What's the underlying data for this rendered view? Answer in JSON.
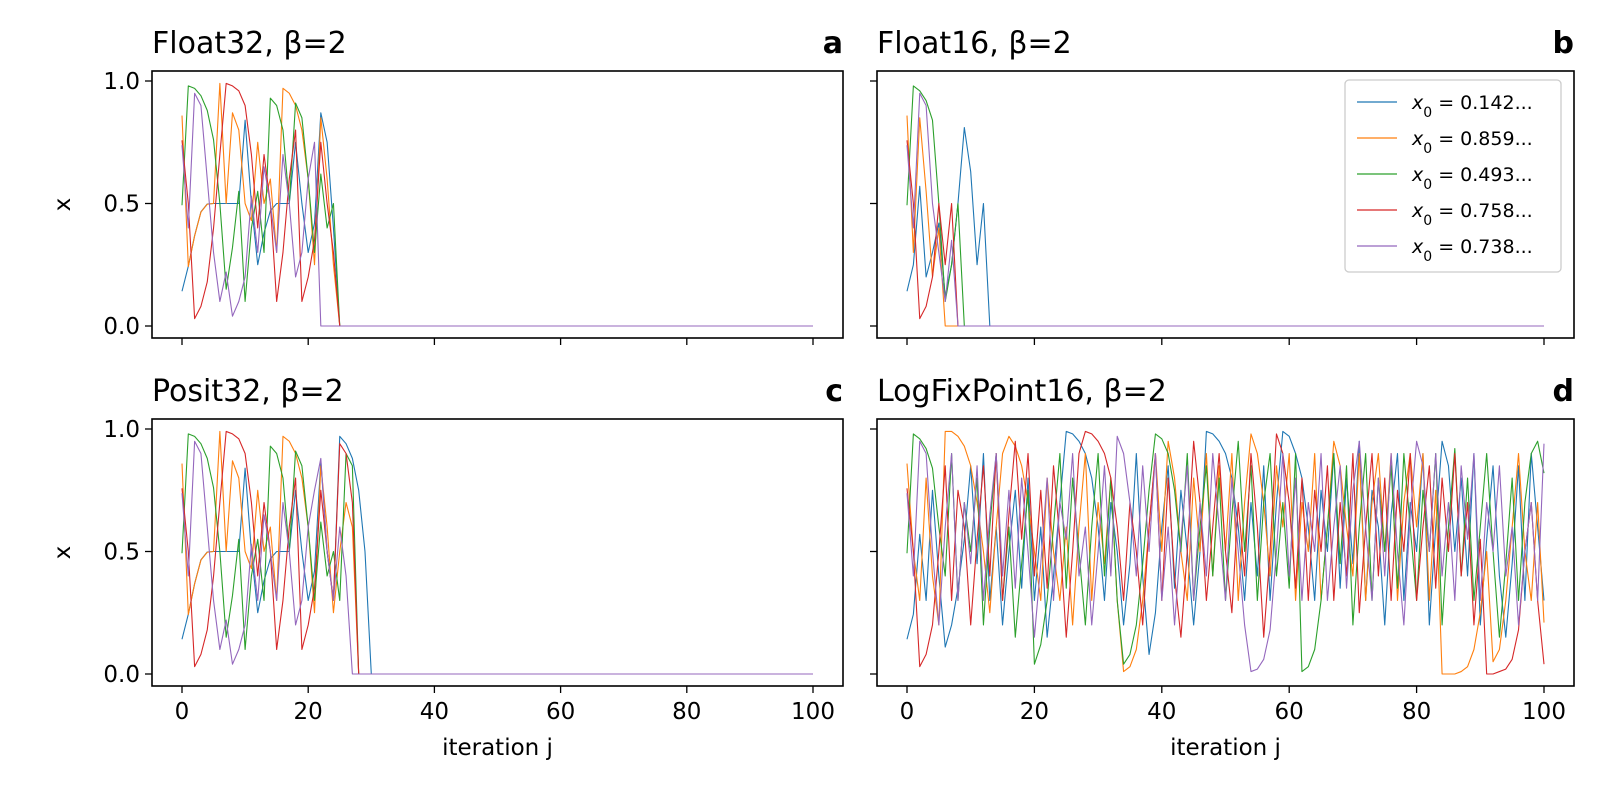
{
  "chart_data": [
    {
      "panel": "a",
      "type": "line",
      "title": "Float32, β=2",
      "letter": "a",
      "xlabel": "",
      "ylabel": "x",
      "xlim": [
        0,
        100
      ],
      "ylim": [
        0,
        1.0
      ],
      "xticks": [
        0,
        20,
        40,
        60,
        80,
        100
      ],
      "show_xtick_labels": false,
      "yticks": [
        0.0,
        0.5,
        1.0
      ],
      "ytick_labels": [
        "0.0",
        "0.5",
        "1.0"
      ],
      "show_ytick_labels": true,
      "series": [
        {
          "color": "#1f77b4",
          "values": [
            0.142,
            0.244,
            0.369,
            0.466,
            0.498,
            0.5,
            0.5,
            0.5,
            0.5,
            0.5,
            0.84,
            0.5,
            0.25,
            0.38,
            0.47,
            0.5,
            0.5,
            0.5,
            0.75,
            0.5,
            0.3,
            0.42,
            0.87,
            0.75,
            0.4,
            0.0
          ]
        },
        {
          "color": "#ff7f0e",
          "values": [
            0.859,
            0.243,
            0.368,
            0.465,
            0.497,
            0.5,
            0.99,
            0.5,
            0.87,
            0.8,
            0.5,
            0.43,
            0.75,
            0.5,
            0.6,
            0.3,
            0.97,
            0.95,
            0.9,
            0.8,
            0.6,
            0.25,
            0.85,
            0.6,
            0.25,
            0.0
          ]
        },
        {
          "color": "#2ca02c",
          "values": [
            0.493,
            0.98,
            0.97,
            0.94,
            0.88,
            0.76,
            0.5,
            0.15,
            0.32,
            0.55,
            0.1,
            0.4,
            0.55,
            0.3,
            0.93,
            0.9,
            0.8,
            0.5,
            0.91,
            0.85,
            0.6,
            0.3,
            0.62,
            0.4,
            0.5,
            0.0
          ]
        },
        {
          "color": "#d62728",
          "values": [
            0.758,
            0.5,
            0.03,
            0.08,
            0.18,
            0.4,
            0.7,
            0.99,
            0.98,
            0.96,
            0.9,
            0.7,
            0.4,
            0.7,
            0.5,
            0.1,
            0.3,
            0.6,
            0.8,
            0.1,
            0.2,
            0.35,
            0.75,
            0.5,
            0.3,
            0.0
          ]
        },
        {
          "color": "#9467bd",
          "values": [
            0.738,
            0.4,
            0.95,
            0.9,
            0.6,
            0.3,
            0.1,
            0.22,
            0.04,
            0.1,
            0.2,
            0.53,
            0.3,
            0.65,
            0.5,
            0.3,
            0.7,
            0.5,
            0.2,
            0.3,
            0.6,
            0.75,
            0.0
          ]
        }
      ]
    },
    {
      "panel": "b",
      "type": "line",
      "title": "Float16, β=2",
      "letter": "b",
      "xlabel": "",
      "ylabel": "",
      "xlim": [
        0,
        100
      ],
      "ylim": [
        0,
        1.0
      ],
      "xticks": [
        0,
        20,
        40,
        60,
        80,
        100
      ],
      "show_xtick_labels": false,
      "yticks": [
        0.0,
        0.5,
        1.0
      ],
      "ytick_labels": [
        "0.0",
        "0.5",
        "1.0"
      ],
      "show_ytick_labels": false,
      "legend_position": "top-right",
      "legend": [
        {
          "prefix": "x",
          "sub": "0",
          "rest": " = 0.142..."
        },
        {
          "prefix": "x",
          "sub": "0",
          "rest": " = 0.859..."
        },
        {
          "prefix": "x",
          "sub": "0",
          "rest": " = 0.493..."
        },
        {
          "prefix": "x",
          "sub": "0",
          "rest": " = 0.758..."
        },
        {
          "prefix": "x",
          "sub": "0",
          "rest": " = 0.738..."
        }
      ],
      "series": [
        {
          "color": "#1f77b4",
          "values": [
            0.142,
            0.25,
            0.57,
            0.2,
            0.3,
            0.42,
            0.12,
            0.25,
            0.5,
            0.81,
            0.63,
            0.25,
            0.5,
            0.0
          ]
        },
        {
          "color": "#ff7f0e",
          "values": [
            0.859,
            0.3,
            0.85,
            0.55,
            0.2,
            0.4,
            0.0
          ]
        },
        {
          "color": "#2ca02c",
          "values": [
            0.493,
            0.98,
            0.96,
            0.92,
            0.84,
            0.5,
            0.1,
            0.25,
            0.5,
            0.0
          ]
        },
        {
          "color": "#d62728",
          "values": [
            0.758,
            0.5,
            0.03,
            0.08,
            0.2,
            0.5,
            0.25,
            0.5,
            0.0
          ]
        },
        {
          "color": "#9467bd",
          "values": [
            0.738,
            0.4,
            0.95,
            0.9,
            0.5,
            0.3,
            0.1,
            0.35,
            0.0
          ]
        }
      ]
    },
    {
      "panel": "c",
      "type": "line",
      "title": "Posit32, β=2",
      "letter": "c",
      "xlabel": "iteration j",
      "ylabel": "x",
      "xlim": [
        0,
        100
      ],
      "ylim": [
        0,
        1.0
      ],
      "xticks": [
        0,
        20,
        40,
        60,
        80,
        100
      ],
      "xtick_labels": [
        "0",
        "20",
        "40",
        "60",
        "80",
        "100"
      ],
      "show_xtick_labels": true,
      "yticks": [
        0.0,
        0.5,
        1.0
      ],
      "ytick_labels": [
        "0.0",
        "0.5",
        "1.0"
      ],
      "show_ytick_labels": true,
      "series": [
        {
          "color": "#1f77b4",
          "values": [
            0.142,
            0.244,
            0.369,
            0.466,
            0.498,
            0.5,
            0.5,
            0.5,
            0.5,
            0.5,
            0.84,
            0.5,
            0.25,
            0.38,
            0.47,
            0.5,
            0.5,
            0.5,
            0.75,
            0.5,
            0.3,
            0.42,
            0.87,
            0.5,
            0.3,
            0.97,
            0.94,
            0.88,
            0.75,
            0.5,
            0.0
          ]
        },
        {
          "color": "#ff7f0e",
          "values": [
            0.859,
            0.243,
            0.368,
            0.465,
            0.497,
            0.5,
            0.99,
            0.5,
            0.87,
            0.8,
            0.5,
            0.43,
            0.75,
            0.5,
            0.6,
            0.3,
            0.97,
            0.95,
            0.9,
            0.8,
            0.6,
            0.25,
            0.85,
            0.6,
            0.25,
            0.5,
            0.7,
            0.6,
            0.0
          ]
        },
        {
          "color": "#2ca02c",
          "values": [
            0.493,
            0.98,
            0.97,
            0.94,
            0.88,
            0.76,
            0.5,
            0.15,
            0.32,
            0.55,
            0.1,
            0.4,
            0.55,
            0.3,
            0.93,
            0.9,
            0.8,
            0.5,
            0.91,
            0.85,
            0.6,
            0.3,
            0.62,
            0.4,
            0.5,
            0.3,
            0.9,
            0.85,
            0.0
          ]
        },
        {
          "color": "#d62728",
          "values": [
            0.758,
            0.5,
            0.03,
            0.08,
            0.18,
            0.4,
            0.7,
            0.99,
            0.98,
            0.96,
            0.9,
            0.7,
            0.4,
            0.7,
            0.5,
            0.1,
            0.3,
            0.6,
            0.8,
            0.1,
            0.2,
            0.35,
            0.75,
            0.5,
            0.3,
            0.94,
            0.9,
            0.7,
            0.0
          ]
        },
        {
          "color": "#9467bd",
          "values": [
            0.738,
            0.4,
            0.95,
            0.9,
            0.6,
            0.3,
            0.1,
            0.22,
            0.04,
            0.1,
            0.2,
            0.53,
            0.3,
            0.65,
            0.5,
            0.3,
            0.7,
            0.5,
            0.2,
            0.3,
            0.6,
            0.75,
            0.88,
            0.5,
            0.3,
            0.6,
            0.4,
            0.0
          ]
        }
      ]
    },
    {
      "panel": "d",
      "type": "line",
      "title": "LogFixPoint16, β=2",
      "letter": "d",
      "xlabel": "iteration j",
      "ylabel": "",
      "xlim": [
        0,
        100
      ],
      "ylim": [
        0,
        1.0
      ],
      "xticks": [
        0,
        20,
        40,
        60,
        80,
        100
      ],
      "xtick_labels": [
        "0",
        "20",
        "40",
        "60",
        "80",
        "100"
      ],
      "show_xtick_labels": true,
      "yticks": [
        0.0,
        0.5,
        1.0
      ],
      "ytick_labels": [
        "0.0",
        "0.5",
        "1.0"
      ],
      "show_ytick_labels": false,
      "series": [
        {
          "color": "#1f77b4",
          "values": [
            0.142,
            0.244,
            0.57,
            0.3,
            0.75,
            0.4,
            0.11,
            0.2,
            0.35,
            0.55,
            0.85,
            0.45,
            0.9,
            0.3,
            0.6,
            0.2,
            0.5,
            0.75,
            0.35,
            0.8,
            0.3,
            0.6,
            0.15,
            0.4,
            0.7,
            0.99,
            0.98,
            0.95,
            0.9,
            0.8,
            0.6,
            0.3,
            0.7,
            0.5,
            0.2,
            0.45,
            0.9,
            0.4,
            0.08,
            0.25,
            0.6,
            0.85,
            0.35,
            0.75,
            0.5,
            0.2,
            0.5,
            0.99,
            0.98,
            0.95,
            0.9,
            0.8,
            0.6,
            0.3,
            0.7,
            0.4,
            0.85,
            0.3,
            0.7,
            0.99,
            0.97,
            0.9,
            0.8,
            0.6,
            0.3,
            0.75,
            0.5,
            0.9,
            0.35,
            0.8,
            0.45,
            0.95,
            0.3,
            0.75,
            0.6,
            0.2,
            0.65,
            0.9,
            0.3,
            0.7,
            0.5,
            0.9,
            0.2,
            0.6,
            0.95,
            0.85,
            0.5,
            0.8,
            0.4,
            0.9,
            0.2,
            0.55,
            0.85,
            0.4,
            0.15,
            0.45,
            0.85,
            0.3,
            0.9,
            0.6,
            0.3
          ]
        },
        {
          "color": "#ff7f0e",
          "values": [
            0.859,
            0.5,
            0.3,
            0.8,
            0.4,
            0.2,
            0.99,
            0.99,
            0.97,
            0.93,
            0.85,
            0.7,
            0.5,
            0.25,
            0.6,
            0.9,
            0.97,
            0.93,
            0.85,
            0.7,
            0.5,
            0.3,
            0.8,
            0.5,
            0.3,
            0.6,
            0.2,
            0.6,
            0.9,
            0.3,
            0.7,
            0.45,
            0.8,
            0.3,
            0.01,
            0.03,
            0.1,
            0.3,
            0.6,
            0.9,
            0.5,
            0.95,
            0.8,
            0.5,
            0.3,
            0.8,
            0.5,
            0.9,
            0.4,
            0.85,
            0.5,
            0.9,
            0.3,
            0.7,
            0.98,
            0.9,
            0.7,
            0.4,
            0.85,
            0.6,
            0.9,
            0.3,
            0.7,
            0.5,
            0.9,
            0.3,
            0.6,
            0.95,
            0.85,
            0.6,
            0.4,
            0.9,
            0.3,
            0.7,
            0.9,
            0.5,
            0.9,
            0.3,
            0.7,
            0.9,
            0.6,
            0.9,
            0.3,
            0.75,
            0.0,
            0.0,
            0.0,
            0.01,
            0.03,
            0.1,
            0.25,
            0.5,
            0.05,
            0.1,
            0.3,
            0.6,
            0.9,
            0.5,
            0.3,
            0.7,
            0.21
          ]
        },
        {
          "color": "#2ca02c",
          "values": [
            0.493,
            0.98,
            0.96,
            0.92,
            0.84,
            0.6,
            0.4,
            0.9,
            0.3,
            0.7,
            0.5,
            0.8,
            0.2,
            0.6,
            0.9,
            0.3,
            0.6,
            0.15,
            0.45,
            0.75,
            0.04,
            0.12,
            0.3,
            0.6,
            0.9,
            0.35,
            0.8,
            0.5,
            0.2,
            0.6,
            0.9,
            0.4,
            0.8,
            0.3,
            0.04,
            0.08,
            0.2,
            0.45,
            0.75,
            0.98,
            0.96,
            0.9,
            0.75,
            0.5,
            0.9,
            0.3,
            0.6,
            0.85,
            0.4,
            0.8,
            0.3,
            0.65,
            0.95,
            0.5,
            0.85,
            0.3,
            0.7,
            0.9,
            0.4,
            0.7,
            0.35,
            0.9,
            0.01,
            0.03,
            0.1,
            0.3,
            0.6,
            0.9,
            0.45,
            0.85,
            0.2,
            0.6,
            0.9,
            0.3,
            0.8,
            0.5,
            0.85,
            0.35,
            0.9,
            0.6,
            0.3,
            0.75,
            0.5,
            0.9,
            0.2,
            0.6,
            0.92,
            0.4,
            0.8,
            0.3,
            0.6,
            0.9,
            0.5,
            0.15,
            0.45,
            0.8,
            0.3,
            0.7,
            0.9,
            0.95,
            0.82
          ]
        },
        {
          "color": "#d62728",
          "values": [
            0.758,
            0.5,
            0.03,
            0.08,
            0.2,
            0.5,
            0.85,
            0.3,
            0.75,
            0.6,
            0.2,
            0.55,
            0.85,
            0.4,
            0.9,
            0.3,
            0.65,
            0.95,
            0.55,
            0.9,
            0.4,
            0.75,
            0.35,
            0.85,
            0.55,
            0.15,
            0.5,
            0.9,
            0.99,
            0.98,
            0.95,
            0.9,
            0.8,
            0.6,
            0.3,
            0.7,
            0.5,
            0.2,
            0.6,
            0.9,
            0.3,
            0.8,
            0.4,
            0.15,
            0.5,
            0.95,
            0.7,
            0.3,
            0.6,
            0.9,
            0.5,
            0.25,
            0.7,
            0.4,
            0.9,
            0.6,
            0.15,
            0.5,
            0.98,
            0.9,
            0.7,
            0.35,
            0.8,
            0.3,
            0.75,
            0.5,
            0.85,
            0.3,
            0.7,
            0.4,
            0.9,
            0.25,
            0.6,
            0.9,
            0.4,
            0.8,
            0.3,
            0.75,
            0.5,
            0.9,
            0.3,
            0.6,
            0.85,
            0.35,
            0.8,
            0.5,
            0.9,
            0.4,
            0.7,
            0.2,
            0.55,
            0.0,
            0.0,
            0.01,
            0.02,
            0.06,
            0.18,
            0.5,
            0.7,
            0.3,
            0.04
          ]
        },
        {
          "color": "#9467bd",
          "values": [
            0.738,
            0.4,
            0.95,
            0.9,
            0.5,
            0.2,
            0.6,
            0.9,
            0.3,
            0.7,
            0.45,
            0.85,
            0.3,
            0.65,
            0.9,
            0.4,
            0.75,
            0.35,
            0.8,
            0.5,
            0.15,
            0.45,
            0.8,
            0.3,
            0.7,
            0.55,
            0.9,
            0.4,
            0.6,
            0.2,
            0.5,
            0.85,
            0.4,
            0.97,
            0.9,
            0.7,
            0.4,
            0.85,
            0.5,
            0.9,
            0.3,
            0.6,
            0.2,
            0.55,
            0.85,
            0.3,
            0.7,
            0.4,
            0.9,
            0.6,
            0.3,
            0.8,
            0.5,
            0.2,
            0.01,
            0.02,
            0.06,
            0.18,
            0.5,
            0.9,
            0.4,
            0.8,
            0.3,
            0.7,
            0.5,
            0.9,
            0.3,
            0.6,
            0.85,
            0.35,
            0.75,
            0.95,
            0.6,
            0.3,
            0.8,
            0.4,
            0.9,
            0.5,
            0.2,
            0.65,
            0.95,
            0.85,
            0.5,
            0.9,
            0.4,
            0.7,
            0.3,
            0.85,
            0.55,
            0.9,
            0.3,
            0.7,
            0.5,
            0.85,
            0.4,
            0.6,
            0.2,
            0.5,
            0.7,
            0.3,
            0.94
          ]
        }
      ]
    }
  ]
}
